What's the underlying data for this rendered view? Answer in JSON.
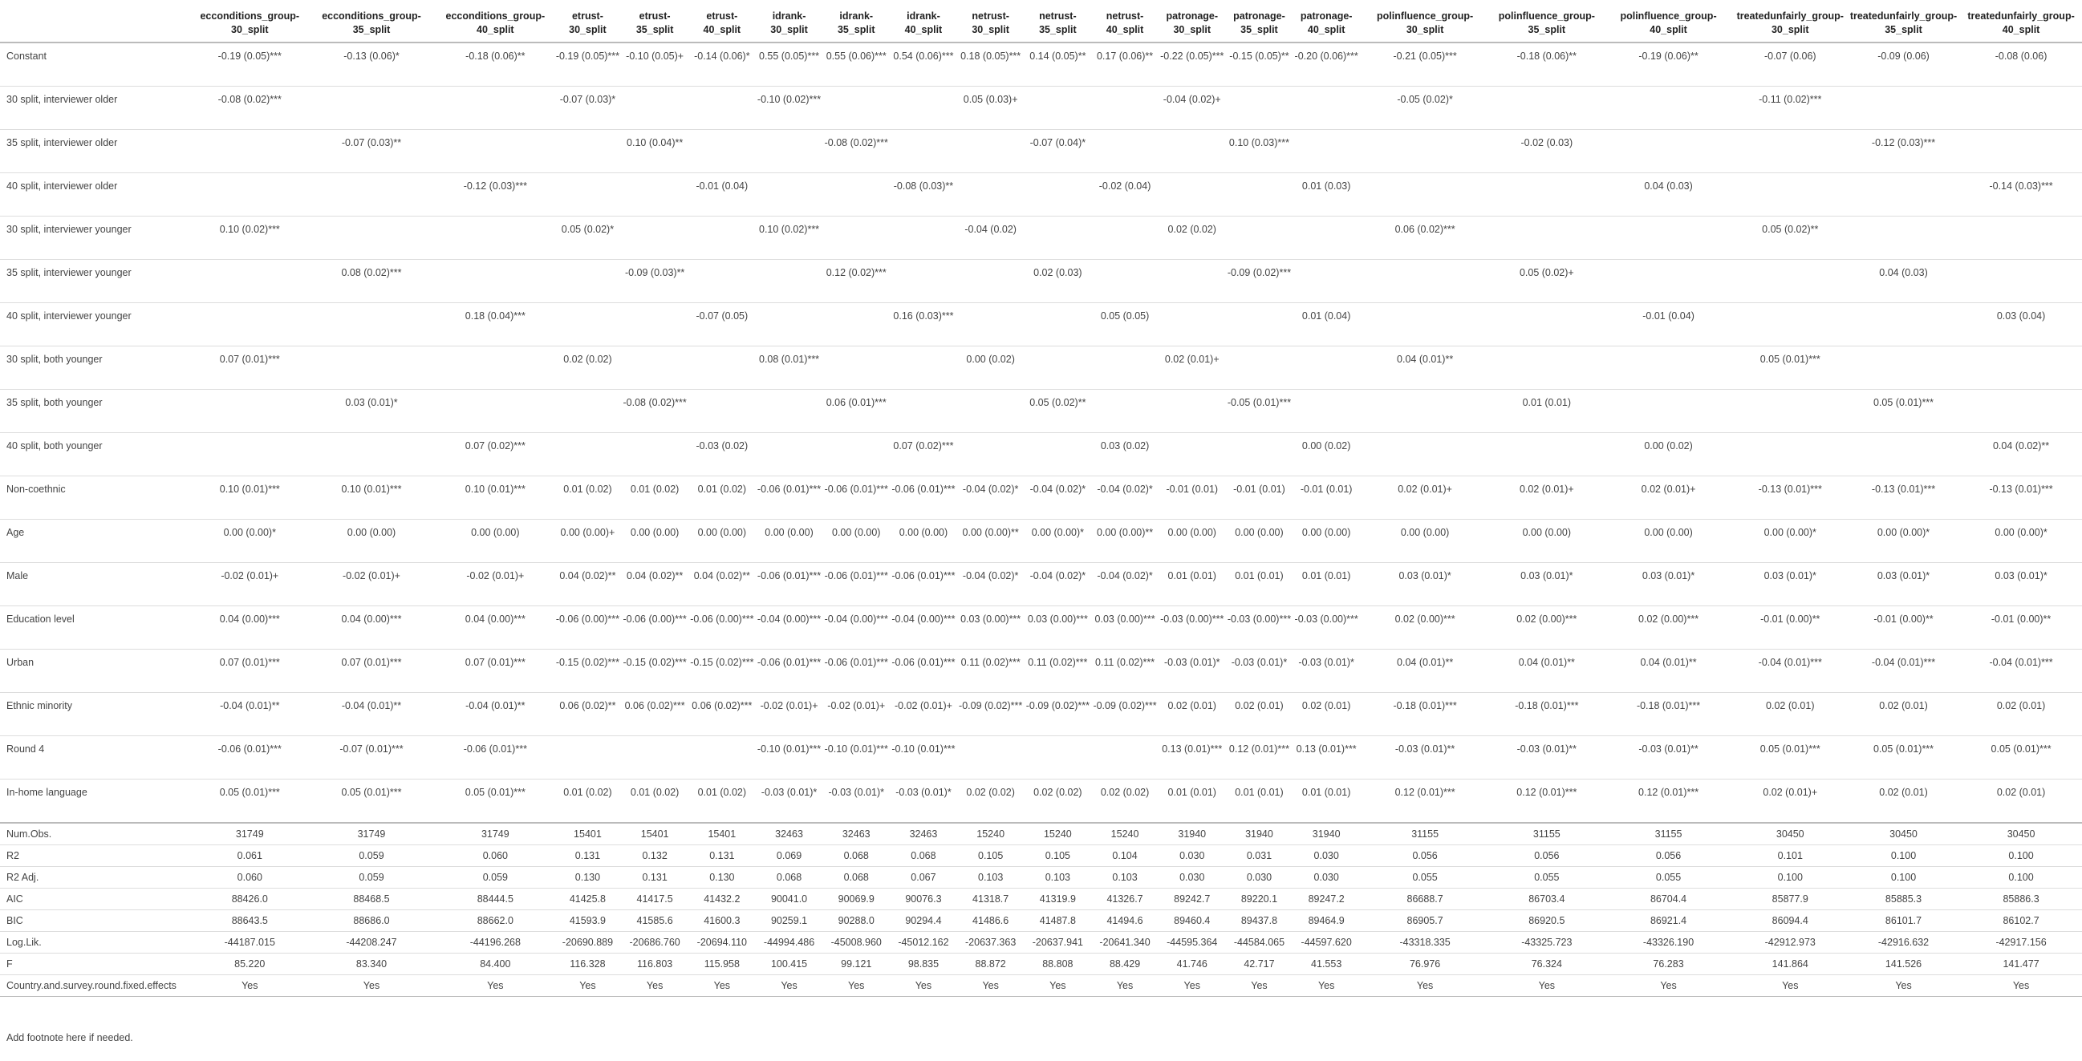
{
  "columns": [
    "ecconditions_group-30_split",
    "ecconditions_group-35_split",
    "ecconditions_group-40_split",
    "etrust-30_split",
    "etrust-35_split",
    "etrust-40_split",
    "idrank-30_split",
    "idrank-35_split",
    "idrank-40_split",
    "netrust-30_split",
    "netrust-35_split",
    "netrust-40_split",
    "patronage-30_split",
    "patronage-35_split",
    "patronage-40_split",
    "polinfluence_group-30_split",
    "polinfluence_group-35_split",
    "polinfluence_group-40_split",
    "treatedunfairly_group-30_split",
    "treatedunfairly_group-35_split",
    "treatedunfairly_group-40_split"
  ],
  "coef_rows": [
    {
      "label": "Constant",
      "cells": [
        "-0.19 (0.05)***",
        "-0.13 (0.06)*",
        "-0.18 (0.06)**",
        "-0.19 (0.05)***",
        "-0.10 (0.05)+",
        "-0.14 (0.06)*",
        "0.55 (0.05)***",
        "0.55 (0.06)***",
        "0.54 (0.06)***",
        "0.18 (0.05)***",
        "0.14 (0.05)**",
        "0.17 (0.06)**",
        "-0.22 (0.05)***",
        "-0.15 (0.05)**",
        "-0.20 (0.06)***",
        "-0.21 (0.05)***",
        "-0.18 (0.06)**",
        "-0.19 (0.06)**",
        "-0.07 (0.06)",
        "-0.09 (0.06)",
        "-0.08 (0.06)"
      ]
    },
    {
      "label": "30 split, interviewer older",
      "cells": [
        "-0.08 (0.02)***",
        "",
        "",
        "-0.07 (0.03)*",
        "",
        "",
        "-0.10 (0.02)***",
        "",
        "",
        "0.05 (0.03)+",
        "",
        "",
        "-0.04 (0.02)+",
        "",
        "",
        "-0.05 (0.02)*",
        "",
        "",
        "-0.11 (0.02)***",
        "",
        ""
      ]
    },
    {
      "label": "35 split, interviewer older",
      "cells": [
        "",
        "-0.07 (0.03)**",
        "",
        "",
        "0.10 (0.04)**",
        "",
        "",
        "-0.08 (0.02)***",
        "",
        "",
        "-0.07 (0.04)*",
        "",
        "",
        "0.10 (0.03)***",
        "",
        "",
        "-0.02 (0.03)",
        "",
        "",
        "-0.12 (0.03)***",
        ""
      ]
    },
    {
      "label": "40 split, interviewer older",
      "cells": [
        "",
        "",
        "-0.12 (0.03)***",
        "",
        "",
        "-0.01 (0.04)",
        "",
        "",
        "-0.08 (0.03)**",
        "",
        "",
        "-0.02 (0.04)",
        "",
        "",
        "0.01 (0.03)",
        "",
        "",
        "0.04 (0.03)",
        "",
        "",
        "-0.14 (0.03)***"
      ]
    },
    {
      "label": "30 split, interviewer younger",
      "cells": [
        "0.10 (0.02)***",
        "",
        "",
        "0.05 (0.02)*",
        "",
        "",
        "0.10 (0.02)***",
        "",
        "",
        "-0.04 (0.02)",
        "",
        "",
        "0.02 (0.02)",
        "",
        "",
        "0.06 (0.02)***",
        "",
        "",
        "0.05 (0.02)**",
        "",
        ""
      ]
    },
    {
      "label": "35 split, interviewer younger",
      "cells": [
        "",
        "0.08 (0.02)***",
        "",
        "",
        "-0.09 (0.03)**",
        "",
        "",
        "0.12 (0.02)***",
        "",
        "",
        "0.02 (0.03)",
        "",
        "",
        "-0.09 (0.02)***",
        "",
        "",
        "0.05 (0.02)+",
        "",
        "",
        "0.04 (0.03)",
        ""
      ]
    },
    {
      "label": "40 split, interviewer younger",
      "cells": [
        "",
        "",
        "0.18 (0.04)***",
        "",
        "",
        "-0.07 (0.05)",
        "",
        "",
        "0.16 (0.03)***",
        "",
        "",
        "0.05 (0.05)",
        "",
        "",
        "0.01 (0.04)",
        "",
        "",
        "-0.01 (0.04)",
        "",
        "",
        "0.03 (0.04)"
      ]
    },
    {
      "label": "30 split, both younger",
      "cells": [
        "0.07 (0.01)***",
        "",
        "",
        "0.02 (0.02)",
        "",
        "",
        "0.08 (0.01)***",
        "",
        "",
        "0.00 (0.02)",
        "",
        "",
        "0.02 (0.01)+",
        "",
        "",
        "0.04 (0.01)**",
        "",
        "",
        "0.05 (0.01)***",
        "",
        ""
      ]
    },
    {
      "label": "35 split, both younger",
      "cells": [
        "",
        "0.03 (0.01)*",
        "",
        "",
        "-0.08 (0.02)***",
        "",
        "",
        "0.06 (0.01)***",
        "",
        "",
        "0.05 (0.02)**",
        "",
        "",
        "-0.05 (0.01)***",
        "",
        "",
        "0.01 (0.01)",
        "",
        "",
        "0.05 (0.01)***",
        ""
      ]
    },
    {
      "label": "40 split, both younger",
      "cells": [
        "",
        "",
        "0.07 (0.02)***",
        "",
        "",
        "-0.03 (0.02)",
        "",
        "",
        "0.07 (0.02)***",
        "",
        "",
        "0.03 (0.02)",
        "",
        "",
        "0.00 (0.02)",
        "",
        "",
        "0.00 (0.02)",
        "",
        "",
        "0.04 (0.02)**"
      ]
    },
    {
      "label": "Non-coethnic",
      "cells": [
        "0.10 (0.01)***",
        "0.10 (0.01)***",
        "0.10 (0.01)***",
        "0.01 (0.02)",
        "0.01 (0.02)",
        "0.01 (0.02)",
        "-0.06 (0.01)***",
        "-0.06 (0.01)***",
        "-0.06 (0.01)***",
        "-0.04 (0.02)*",
        "-0.04 (0.02)*",
        "-0.04 (0.02)*",
        "-0.01 (0.01)",
        "-0.01 (0.01)",
        "-0.01 (0.01)",
        "0.02 (0.01)+",
        "0.02 (0.01)+",
        "0.02 (0.01)+",
        "-0.13 (0.01)***",
        "-0.13 (0.01)***",
        "-0.13 (0.01)***"
      ]
    },
    {
      "label": "Age",
      "cells": [
        "0.00 (0.00)*",
        "0.00 (0.00)",
        "0.00 (0.00)",
        "0.00 (0.00)+",
        "0.00 (0.00)",
        "0.00 (0.00)",
        "0.00 (0.00)",
        "0.00 (0.00)",
        "0.00 (0.00)",
        "0.00 (0.00)**",
        "0.00 (0.00)*",
        "0.00 (0.00)**",
        "0.00 (0.00)",
        "0.00 (0.00)",
        "0.00 (0.00)",
        "0.00 (0.00)",
        "0.00 (0.00)",
        "0.00 (0.00)",
        "0.00 (0.00)*",
        "0.00 (0.00)*",
        "0.00 (0.00)*"
      ]
    },
    {
      "label": "Male",
      "cells": [
        "-0.02 (0.01)+",
        "-0.02 (0.01)+",
        "-0.02 (0.01)+",
        "0.04 (0.02)**",
        "0.04 (0.02)**",
        "0.04 (0.02)**",
        "-0.06 (0.01)***",
        "-0.06 (0.01)***",
        "-0.06 (0.01)***",
        "-0.04 (0.02)*",
        "-0.04 (0.02)*",
        "-0.04 (0.02)*",
        "0.01 (0.01)",
        "0.01 (0.01)",
        "0.01 (0.01)",
        "0.03 (0.01)*",
        "0.03 (0.01)*",
        "0.03 (0.01)*",
        "0.03 (0.01)*",
        "0.03 (0.01)*",
        "0.03 (0.01)*"
      ]
    },
    {
      "label": "Education level",
      "cells": [
        "0.04 (0.00)***",
        "0.04 (0.00)***",
        "0.04 (0.00)***",
        "-0.06 (0.00)***",
        "-0.06 (0.00)***",
        "-0.06 (0.00)***",
        "-0.04 (0.00)***",
        "-0.04 (0.00)***",
        "-0.04 (0.00)***",
        "0.03 (0.00)***",
        "0.03 (0.00)***",
        "0.03 (0.00)***",
        "-0.03 (0.00)***",
        "-0.03 (0.00)***",
        "-0.03 (0.00)***",
        "0.02 (0.00)***",
        "0.02 (0.00)***",
        "0.02 (0.00)***",
        "-0.01 (0.00)**",
        "-0.01 (0.00)**",
        "-0.01 (0.00)**"
      ]
    },
    {
      "label": "Urban",
      "cells": [
        "0.07 (0.01)***",
        "0.07 (0.01)***",
        "0.07 (0.01)***",
        "-0.15 (0.02)***",
        "-0.15 (0.02)***",
        "-0.15 (0.02)***",
        "-0.06 (0.01)***",
        "-0.06 (0.01)***",
        "-0.06 (0.01)***",
        "0.11 (0.02)***",
        "0.11 (0.02)***",
        "0.11 (0.02)***",
        "-0.03 (0.01)*",
        "-0.03 (0.01)*",
        "-0.03 (0.01)*",
        "0.04 (0.01)**",
        "0.04 (0.01)**",
        "0.04 (0.01)**",
        "-0.04 (0.01)***",
        "-0.04 (0.01)***",
        "-0.04 (0.01)***"
      ]
    },
    {
      "label": "Ethnic minority",
      "cells": [
        "-0.04 (0.01)**",
        "-0.04 (0.01)**",
        "-0.04 (0.01)**",
        "0.06 (0.02)**",
        "0.06 (0.02)***",
        "0.06 (0.02)***",
        "-0.02 (0.01)+",
        "-0.02 (0.01)+",
        "-0.02 (0.01)+",
        "-0.09 (0.02)***",
        "-0.09 (0.02)***",
        "-0.09 (0.02)***",
        "0.02 (0.01)",
        "0.02 (0.01)",
        "0.02 (0.01)",
        "-0.18 (0.01)***",
        "-0.18 (0.01)***",
        "-0.18 (0.01)***",
        "0.02 (0.01)",
        "0.02 (0.01)",
        "0.02 (0.01)"
      ]
    },
    {
      "label": "Round 4",
      "cells": [
        "-0.06 (0.01)***",
        "-0.07 (0.01)***",
        "-0.06 (0.01)***",
        "",
        "",
        "",
        "-0.10 (0.01)***",
        "-0.10 (0.01)***",
        "-0.10 (0.01)***",
        "",
        "",
        "",
        "0.13 (0.01)***",
        "0.12 (0.01)***",
        "0.13 (0.01)***",
        "-0.03 (0.01)**",
        "-0.03 (0.01)**",
        "-0.03 (0.01)**",
        "0.05 (0.01)***",
        "0.05 (0.01)***",
        "0.05 (0.01)***"
      ]
    },
    {
      "label": "In-home language",
      "cells": [
        "0.05 (0.01)***",
        "0.05 (0.01)***",
        "0.05 (0.01)***",
        "0.01 (0.02)",
        "0.01 (0.02)",
        "0.01 (0.02)",
        "-0.03 (0.01)*",
        "-0.03 (0.01)*",
        "-0.03 (0.01)*",
        "0.02 (0.02)",
        "0.02 (0.02)",
        "0.02 (0.02)",
        "0.01 (0.01)",
        "0.01 (0.01)",
        "0.01 (0.01)",
        "0.12 (0.01)***",
        "0.12 (0.01)***",
        "0.12 (0.01)***",
        "0.02 (0.01)+",
        "0.02 (0.01)",
        "0.02 (0.01)"
      ]
    }
  ],
  "stat_rows": [
    {
      "label": "Num.Obs.",
      "cells": [
        "31749",
        "31749",
        "31749",
        "15401",
        "15401",
        "15401",
        "32463",
        "32463",
        "32463",
        "15240",
        "15240",
        "15240",
        "31940",
        "31940",
        "31940",
        "31155",
        "31155",
        "31155",
        "30450",
        "30450",
        "30450"
      ]
    },
    {
      "label": "R2",
      "cells": [
        "0.061",
        "0.059",
        "0.060",
        "0.131",
        "0.132",
        "0.131",
        "0.069",
        "0.068",
        "0.068",
        "0.105",
        "0.105",
        "0.104",
        "0.030",
        "0.031",
        "0.030",
        "0.056",
        "0.056",
        "0.056",
        "0.101",
        "0.100",
        "0.100"
      ]
    },
    {
      "label": "R2 Adj.",
      "cells": [
        "0.060",
        "0.059",
        "0.059",
        "0.130",
        "0.131",
        "0.130",
        "0.068",
        "0.068",
        "0.067",
        "0.103",
        "0.103",
        "0.103",
        "0.030",
        "0.030",
        "0.030",
        "0.055",
        "0.055",
        "0.055",
        "0.100",
        "0.100",
        "0.100"
      ]
    },
    {
      "label": "AIC",
      "cells": [
        "88426.0",
        "88468.5",
        "88444.5",
        "41425.8",
        "41417.5",
        "41432.2",
        "90041.0",
        "90069.9",
        "90076.3",
        "41318.7",
        "41319.9",
        "41326.7",
        "89242.7",
        "89220.1",
        "89247.2",
        "86688.7",
        "86703.4",
        "86704.4",
        "85877.9",
        "85885.3",
        "85886.3"
      ]
    },
    {
      "label": "BIC",
      "cells": [
        "88643.5",
        "88686.0",
        "88662.0",
        "41593.9",
        "41585.6",
        "41600.3",
        "90259.1",
        "90288.0",
        "90294.4",
        "41486.6",
        "41487.8",
        "41494.6",
        "89460.4",
        "89437.8",
        "89464.9",
        "86905.7",
        "86920.5",
        "86921.4",
        "86094.4",
        "86101.7",
        "86102.7"
      ]
    },
    {
      "label": "Log.Lik.",
      "cells": [
        "-44187.015",
        "-44208.247",
        "-44196.268",
        "-20690.889",
        "-20686.760",
        "-20694.110",
        "-44994.486",
        "-45008.960",
        "-45012.162",
        "-20637.363",
        "-20637.941",
        "-20641.340",
        "-44595.364",
        "-44584.065",
        "-44597.620",
        "-43318.335",
        "-43325.723",
        "-43326.190",
        "-42912.973",
        "-42916.632",
        "-42917.156"
      ]
    },
    {
      "label": "F",
      "cells": [
        "85.220",
        "83.340",
        "84.400",
        "116.328",
        "116.803",
        "115.958",
        "100.415",
        "99.121",
        "98.835",
        "88.872",
        "88.808",
        "88.429",
        "41.746",
        "42.717",
        "41.553",
        "76.976",
        "76.324",
        "76.283",
        "141.864",
        "141.526",
        "141.477"
      ]
    }
  ],
  "fe_row": {
    "label": "Country.and.survey.round.fixed.effects",
    "cells": [
      "Yes",
      "Yes",
      "Yes",
      "Yes",
      "Yes",
      "Yes",
      "Yes",
      "Yes",
      "Yes",
      "Yes",
      "Yes",
      "Yes",
      "Yes",
      "Yes",
      "Yes",
      "Yes",
      "Yes",
      "Yes",
      "Yes",
      "Yes",
      "Yes"
    ]
  },
  "footnote": "Add footnote here if needed."
}
